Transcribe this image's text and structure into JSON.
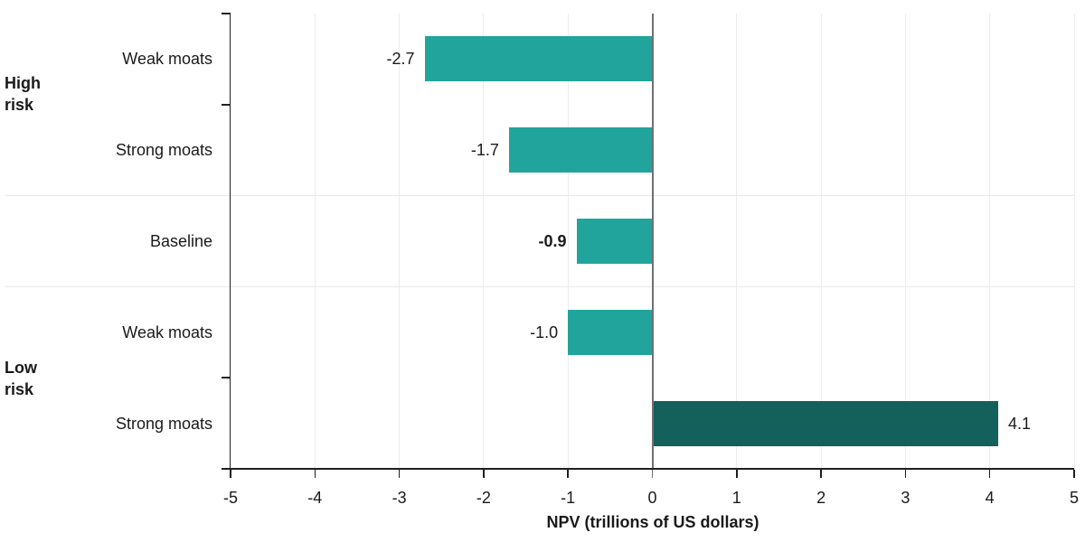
{
  "chart_data": {
    "type": "bar",
    "orientation": "horizontal",
    "title": "",
    "xlabel": "NPV (trillions of US dollars)",
    "ylabel": "",
    "xlim": [
      -5,
      5
    ],
    "x_ticks": [
      -5,
      -4,
      -3,
      -2,
      -1,
      0,
      1,
      2,
      3,
      4,
      5
    ],
    "x_tick_labels": [
      "-5",
      "-4",
      "-3",
      "-2",
      "-1",
      "0",
      "1",
      "2",
      "3",
      "4",
      "5"
    ],
    "grid": "vertical-light, horizontal-group-separators",
    "legend": "none",
    "categories": [
      "Weak moats",
      "Strong moats",
      "Baseline",
      "Weak moats",
      "Strong moats"
    ],
    "values": [
      -2.7,
      -1.7,
      -0.9,
      -1.0,
      4.1
    ],
    "rows": [
      {
        "group": "High risk",
        "category": "Weak moats",
        "value": -2.7,
        "value_label": "-2.7",
        "bold_value": false,
        "color_key": "bar"
      },
      {
        "group": "High risk",
        "category": "Strong moats",
        "value": -1.7,
        "value_label": "-1.7",
        "bold_value": false,
        "color_key": "bar"
      },
      {
        "group": "Baseline",
        "category": "Baseline",
        "value": -0.9,
        "value_label": "-0.9",
        "bold_value": true,
        "color_key": "bar"
      },
      {
        "group": "Low risk",
        "category": "Weak moats",
        "value": -1.0,
        "value_label": "-1.0",
        "bold_value": false,
        "color_key": "bar"
      },
      {
        "group": "Low risk",
        "category": "Strong moats",
        "value": 4.1,
        "value_label": "4.1",
        "bold_value": false,
        "color_key": "bar_highlight"
      }
    ],
    "group_labels": [
      {
        "lines": [
          "High",
          "risk"
        ]
      },
      {
        "lines": [
          "Low",
          "risk"
        ]
      }
    ],
    "colors": {
      "bar": "#21A49C",
      "bar_highlight": "#14605A",
      "axis": "#1F1F1F",
      "zero_line": "#6F7073",
      "gridline": "#ECECEC",
      "group_separator": "#E8E8E8",
      "text": "#1A1A1A"
    }
  }
}
